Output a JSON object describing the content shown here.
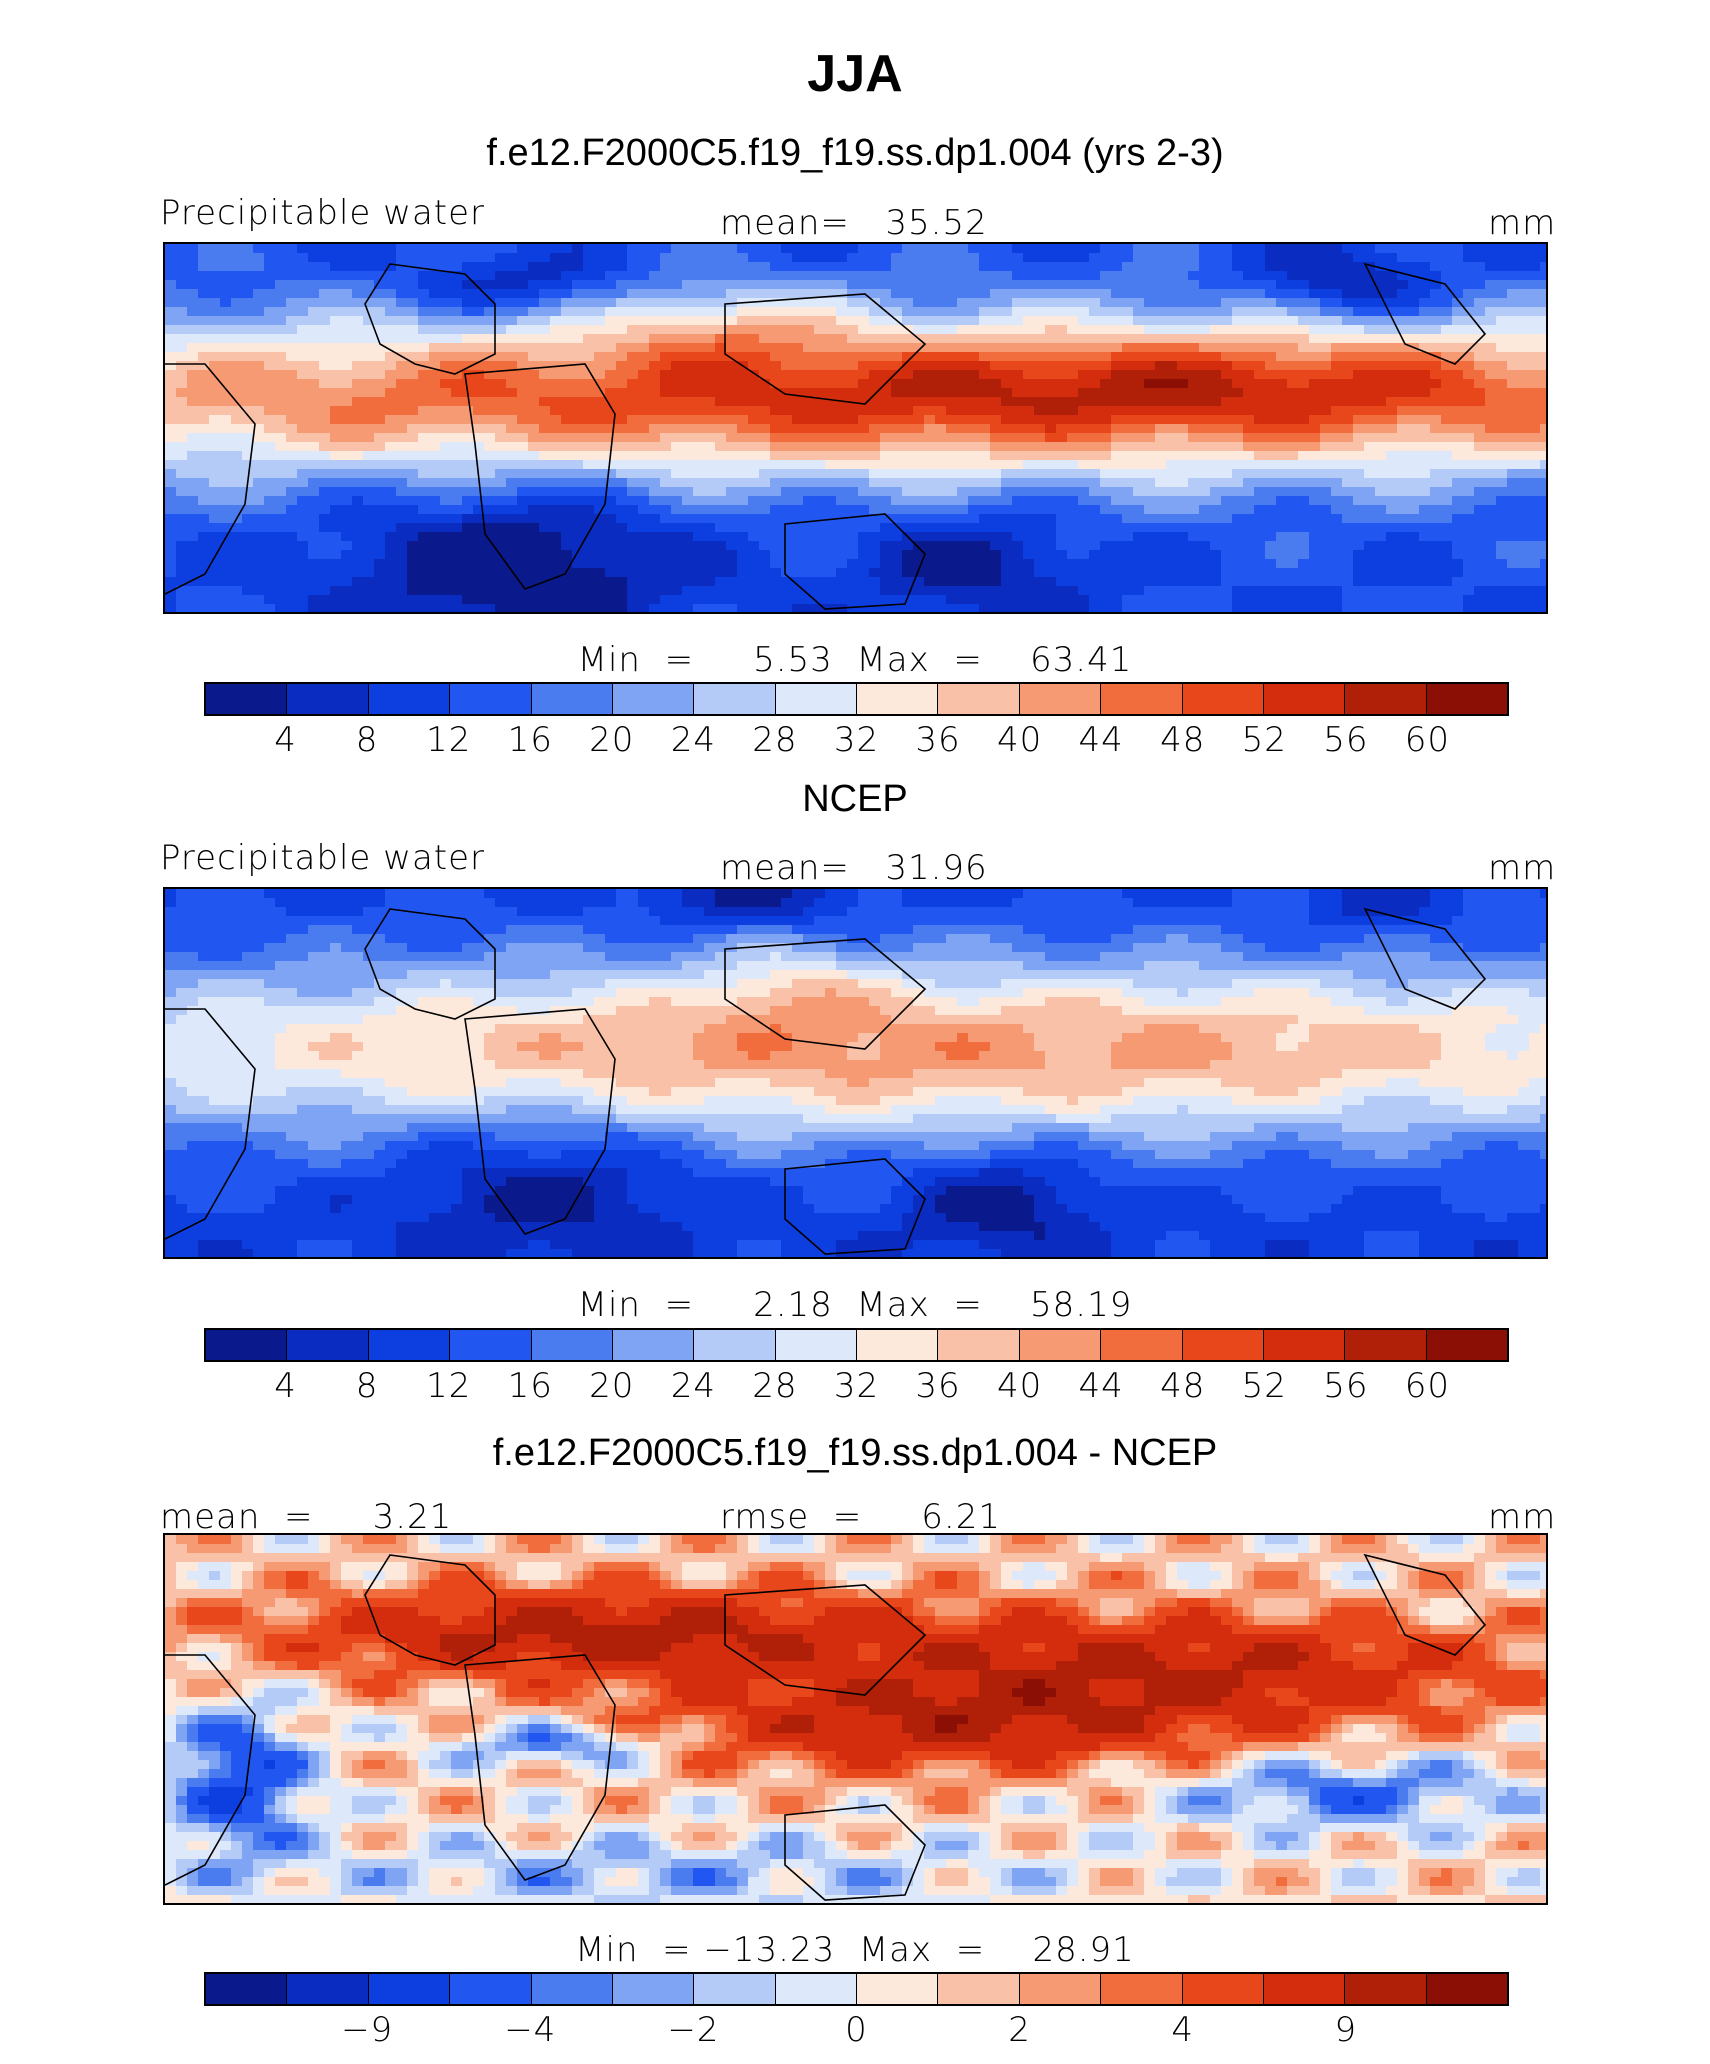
{
  "title": "JJA",
  "colors": [
    "#0a1a8c",
    "#0a2cc0",
    "#0d3fe0",
    "#2157f0",
    "#4a7cf0",
    "#7ea4f3",
    "#b4cbf7",
    "#dde8fb",
    "#fde9dc",
    "#f9c2a8",
    "#f59a72",
    "#f26d3e",
    "#e8461b",
    "#d32d0e",
    "#b01f08",
    "#8b0f04"
  ],
  "panels": [
    {
      "subtitle": "f.e12.F2000C5.f19_f19.ss.dp1.004 (yrs 2-3)",
      "left_label": "Precipitable water",
      "center_label": "mean=   35.52",
      "right_label": "mm",
      "minmax": "Min  =     5.53  Max  =    63.41",
      "ticks": [
        "4",
        "8",
        "12",
        "16",
        "20",
        "24",
        "28",
        "32",
        "36",
        "40",
        "44",
        "48",
        "52",
        "56",
        "60"
      ],
      "pattern": "model"
    },
    {
      "subtitle": "NCEP",
      "left_label": "Precipitable water",
      "center_label": "mean=   31.96",
      "right_label": "mm",
      "minmax": "Min  =     2.18  Max  =    58.19",
      "ticks": [
        "4",
        "8",
        "12",
        "16",
        "20",
        "24",
        "28",
        "32",
        "36",
        "40",
        "44",
        "48",
        "52",
        "56",
        "60"
      ],
      "pattern": "obs"
    },
    {
      "subtitle": "f.e12.F2000C5.f19_f19.ss.dp1.004 - NCEP",
      "left_label": "mean  =     3.21",
      "center_label": "rmse  =     6.21",
      "right_label": "mm",
      "minmax": "Min  = −13.23  Max  =    28.91",
      "ticks": [
        "−9",
        "",
        "−4",
        "",
        "−2",
        "",
        "0",
        "",
        "2",
        "",
        "4",
        "",
        "9",
        "",
        ""
      ],
      "tick_positions": [
        2,
        4,
        6,
        8,
        10,
        12,
        14
      ],
      "tick_values": [
        "−9",
        "−4",
        "−2",
        "0",
        "2",
        "4",
        "9"
      ],
      "pattern": "diff"
    }
  ]
}
